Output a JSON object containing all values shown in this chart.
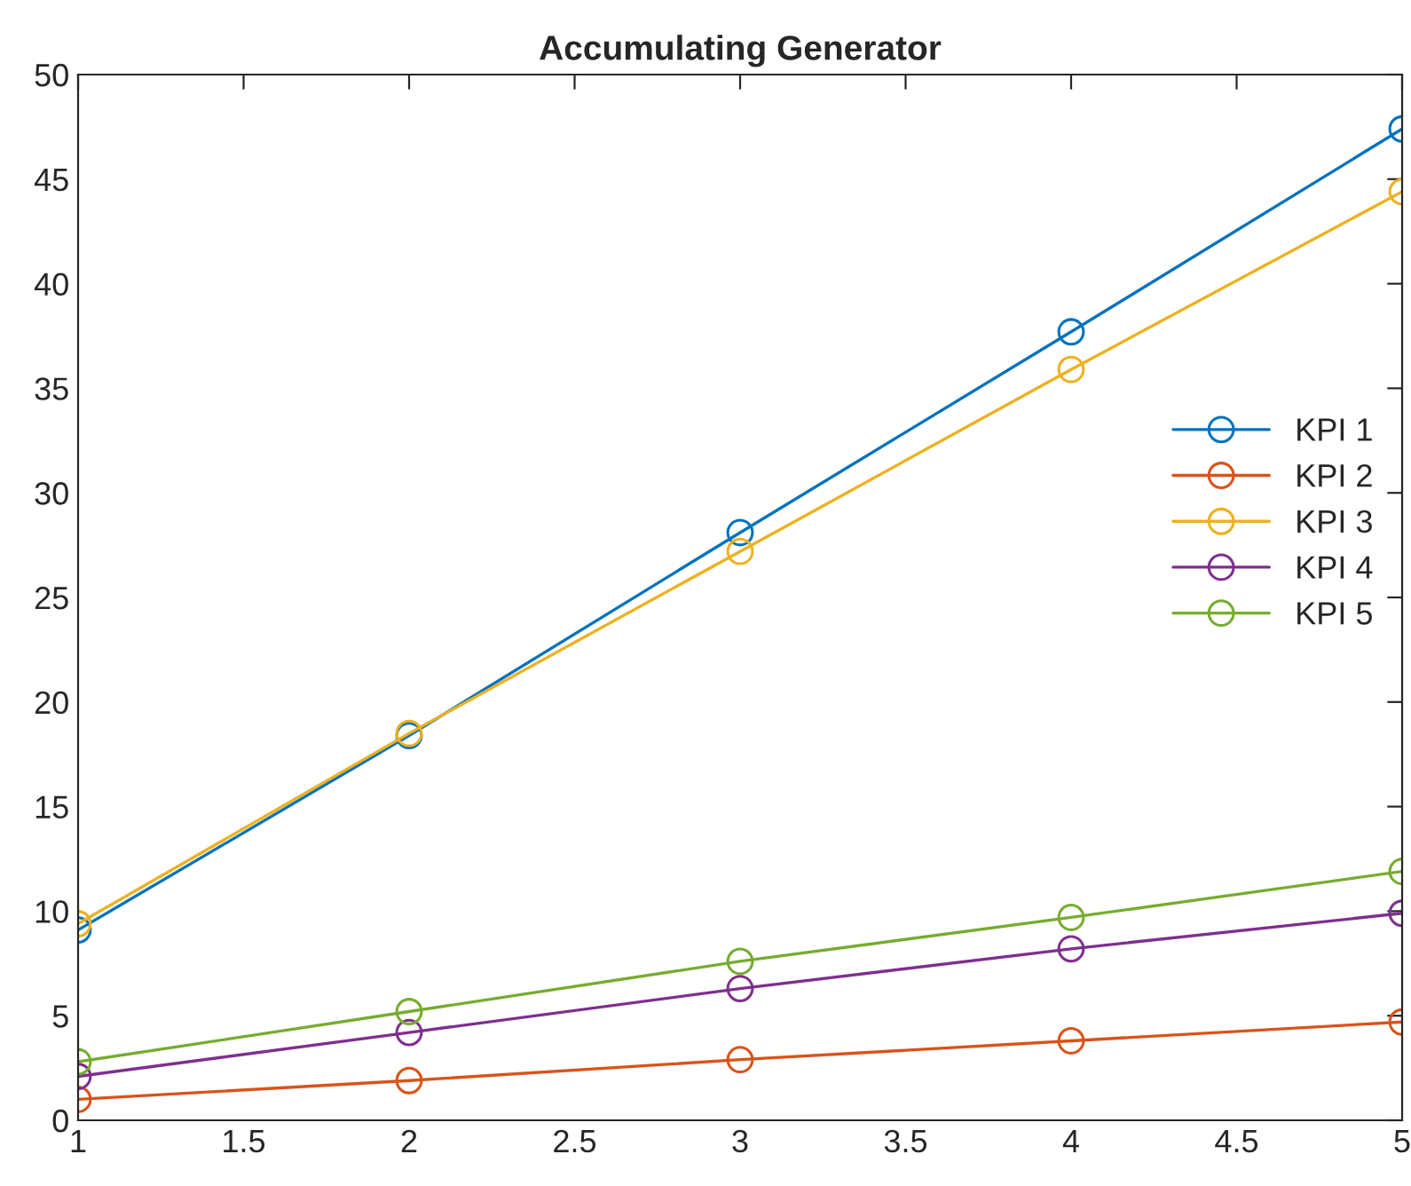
{
  "chart_data": {
    "type": "line",
    "title": "Accumulating Generator",
    "x": [
      1,
      2,
      3,
      4,
      5
    ],
    "series": [
      {
        "name": "KPI 1",
        "color": "#0072bd",
        "values": [
          9.1,
          18.4,
          28.1,
          37.7,
          47.4
        ]
      },
      {
        "name": "KPI 2",
        "color": "#d95319",
        "values": [
          1.0,
          1.9,
          2.9,
          3.8,
          4.7
        ]
      },
      {
        "name": "KPI 3",
        "color": "#edb120",
        "values": [
          9.4,
          18.5,
          27.2,
          35.9,
          44.4
        ]
      },
      {
        "name": "KPI 4",
        "color": "#7e2f8e",
        "values": [
          2.1,
          4.2,
          6.3,
          8.2,
          9.9
        ]
      },
      {
        "name": "KPI 5",
        "color": "#77ac30",
        "values": [
          2.8,
          5.2,
          7.6,
          9.7,
          11.9
        ]
      }
    ],
    "xlim": [
      1,
      5
    ],
    "xticks": [
      1,
      1.5,
      2,
      2.5,
      3,
      3.5,
      4,
      4.5,
      5
    ],
    "ylim": [
      0,
      50
    ],
    "yticks": [
      0,
      5,
      10,
      15,
      20,
      25,
      30,
      35,
      40,
      45,
      50
    ],
    "marker": "circle",
    "line_style": "solid",
    "legend": "right",
    "grid": false
  }
}
